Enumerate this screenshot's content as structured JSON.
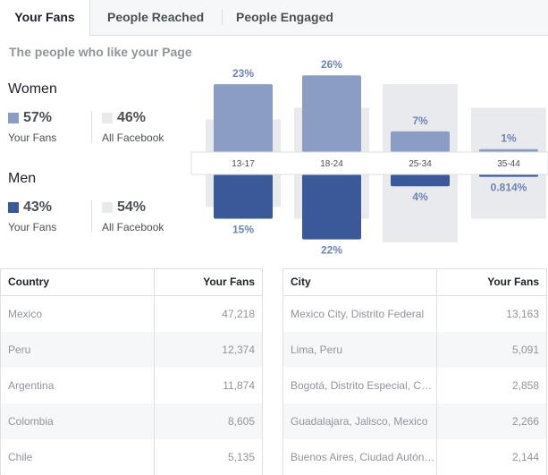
{
  "tabs": [
    {
      "label": "Your Fans"
    },
    {
      "label": "People Reached"
    },
    {
      "label": "People Engaged"
    }
  ],
  "subtitle": "The people who like your Page",
  "women": {
    "title": "Women",
    "your_fans_pct": "57%",
    "your_fans_label": "Your Fans",
    "all_facebook_pct": "46%",
    "all_facebook_label": "All Facebook"
  },
  "men": {
    "title": "Men",
    "your_fans_pct": "43%",
    "your_fans_label": "Your Fans",
    "all_facebook_pct": "54%",
    "all_facebook_label": "All Facebook"
  },
  "colors": {
    "women": "#8b9dc3",
    "men": "#3b5998",
    "all_facebook": "#e9eaed"
  },
  "chart_data": {
    "type": "bar",
    "categories": [
      "13-17",
      "18-24",
      "25-34",
      "35-44"
    ],
    "series": [
      {
        "name": "Women",
        "values": [
          23,
          26,
          7,
          1
        ],
        "labels": [
          "23%",
          "26%",
          "7%",
          "1%"
        ]
      },
      {
        "name": "Men",
        "values": [
          15,
          22,
          4,
          0.814
        ],
        "labels": [
          "15%",
          "22%",
          "4%",
          "0.814%"
        ]
      }
    ],
    "all_facebook": {
      "women": [
        11,
        15,
        23,
        15
      ],
      "men": [
        11,
        15,
        23,
        15
      ]
    }
  },
  "country_table": {
    "headers": [
      "Country",
      "Your Fans"
    ],
    "rows": [
      [
        "Mexico",
        "47,218"
      ],
      [
        "Peru",
        "12,374"
      ],
      [
        "Argentina",
        "11,874"
      ],
      [
        "Colombia",
        "8,605"
      ],
      [
        "Chile",
        "5,135"
      ]
    ]
  },
  "city_table": {
    "headers": [
      "City",
      "Your Fans"
    ],
    "rows": [
      [
        "Mexico City, Distrito Federal",
        "13,163"
      ],
      [
        "Lima, Peru",
        "5,091"
      ],
      [
        "Bogotá, Distrito Especial, Colombia",
        "2,858"
      ],
      [
        "Guadalajara, Jalisco, Mexico",
        "2,266"
      ],
      [
        "Buenos Aires, Ciudad Autónoma de Buenos Aires, Argentina",
        "2,144"
      ]
    ]
  }
}
